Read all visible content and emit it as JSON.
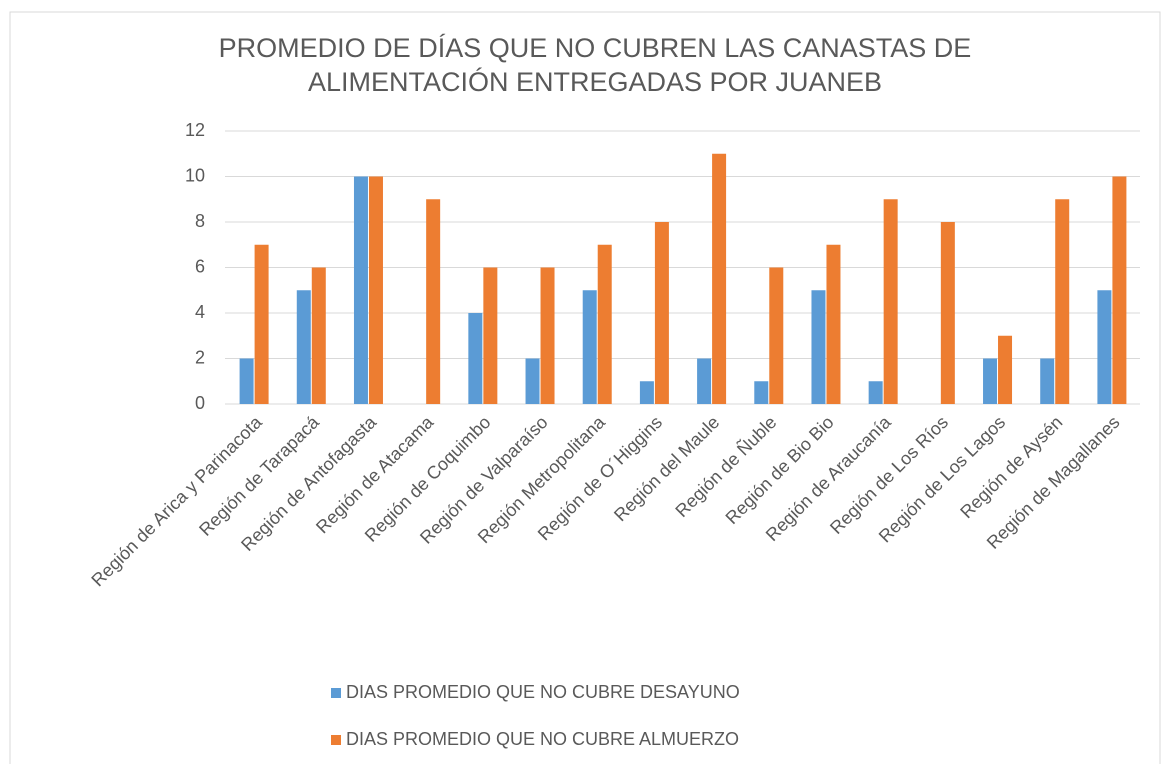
{
  "chart_data": {
    "type": "bar",
    "title": [
      "PROMEDIO DE DÍAS QUE NO CUBREN LAS CANASTAS DE",
      "ALIMENTACIÓN ENTREGADAS POR JUANEB"
    ],
    "categories": [
      "Región de Arica y Parinacota",
      "Región de Tarapacá",
      "Región de Antofagasta",
      "Región de Atacama",
      "Región de Coquimbo",
      "Región de Valparaíso",
      "Región Metropolitana",
      "Región de O´Higgins",
      "Región del Maule",
      "Región de Ñuble",
      "Región de Bio Bio",
      "Región de Araucanía",
      "Región de Los Ríos",
      "Región de Los Lagos",
      "Región de Aysén",
      "Región de Magallanes"
    ],
    "series": [
      {
        "name": "DIAS PROMEDIO QUE NO CUBRE DESAYUNO",
        "color": "#5b9bd5",
        "values": [
          2,
          5,
          10,
          0,
          4,
          2,
          5,
          1,
          2,
          1,
          5,
          1,
          0,
          2,
          2,
          5
        ]
      },
      {
        "name": "DIAS PROMEDIO QUE NO CUBRE ALMUERZO",
        "color": "#ed7d31",
        "values": [
          7,
          6,
          10,
          9,
          6,
          6,
          7,
          8,
          11,
          6,
          7,
          9,
          8,
          3,
          9,
          10
        ]
      }
    ],
    "ylim": [
      0,
      12
    ],
    "yticks": [
      0,
      2,
      4,
      6,
      8,
      10,
      12
    ],
    "grid": true,
    "legend": "bottom"
  }
}
